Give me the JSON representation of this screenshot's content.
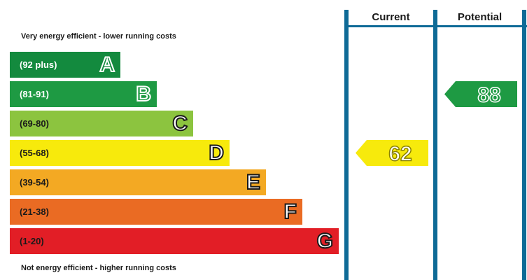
{
  "top_caption": "Very energy efficient - lower running costs",
  "bottom_caption": "Not energy efficient - higher running costs",
  "columns": {
    "current": "Current",
    "potential": "Potential"
  },
  "chart_data": {
    "type": "bar",
    "bands": [
      {
        "range": "(92 plus)",
        "letter": "A",
        "color": "#138a3e",
        "text_color": "#ffffff"
      },
      {
        "range": "(81-91)",
        "letter": "B",
        "color": "#1e9a43",
        "text_color": "#ffffff"
      },
      {
        "range": "(69-80)",
        "letter": "C",
        "color": "#8cc43f",
        "text_color": "#1a1a1a"
      },
      {
        "range": "(55-68)",
        "letter": "D",
        "color": "#f7ea0c",
        "text_color": "#1a1a1a"
      },
      {
        "range": "(39-54)",
        "letter": "E",
        "color": "#f3a923",
        "text_color": "#1a1a1a"
      },
      {
        "range": "(21-38)",
        "letter": "F",
        "color": "#ea6b23",
        "text_color": "#1a1a1a"
      },
      {
        "range": "(1-20)",
        "letter": "G",
        "color": "#e21e26",
        "text_color": "#1a1a1a"
      }
    ],
    "current": {
      "value": "62",
      "band": "D",
      "color": "#f7ea0c"
    },
    "potential": {
      "value": "88",
      "band": "B",
      "color": "#1e9a43"
    }
  }
}
